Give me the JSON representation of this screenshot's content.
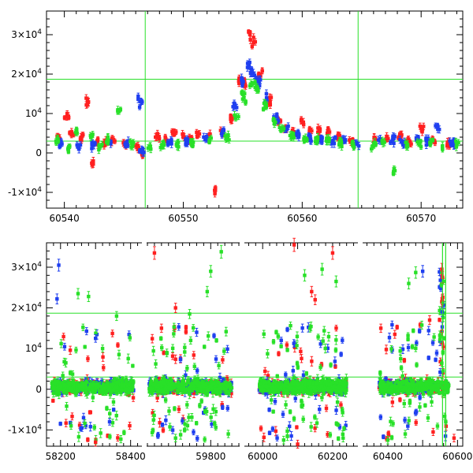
{
  "colors": {
    "background": "#ffffff",
    "axes": "#000000",
    "red": "#ff2020",
    "blue": "#1f3ff0",
    "green": "#28e028",
    "threshold_lines": "#28e028"
  },
  "chart_data": [
    {
      "id": "top_panel",
      "type": "scatter",
      "title": "",
      "xlabel": "",
      "ylabel": "",
      "xlim": [
        60538.5,
        60573.5
      ],
      "ylim": [
        -14000,
        36000
      ],
      "grid": false,
      "legend": "none",
      "x_ticks": [
        {
          "value": 60540,
          "label": "60540"
        },
        {
          "value": 60550,
          "label": "60550"
        },
        {
          "value": 60560,
          "label": "60560"
        },
        {
          "value": 60570,
          "label": "60570"
        }
      ],
      "y_ticks": [
        {
          "value": -10000,
          "base": "-1×10",
          "exp": "4"
        },
        {
          "value": 0,
          "base": "0",
          "exp": ""
        },
        {
          "value": 10000,
          "base": "10",
          "exp": "4"
        },
        {
          "value": 20000,
          "base": "2×10",
          "exp": "4"
        },
        {
          "value": 30000,
          "base": "3×10",
          "exp": "4"
        }
      ],
      "hlines": [
        18700,
        3000
      ],
      "vlines": [
        60546.8,
        60564.7
      ],
      "series": [
        {
          "color": "red",
          "points": [
            [
              60539.5,
              3500
            ],
            [
              60540.2,
              9200
            ],
            [
              60540.6,
              4500
            ],
            [
              60541.4,
              4000
            ],
            [
              60542.0,
              12800
            ],
            [
              60542.3,
              -2600
            ],
            [
              60542.8,
              2900
            ],
            [
              60543.5,
              2500
            ],
            [
              60544.1,
              3400
            ],
            [
              60545.0,
              2700
            ],
            [
              60546.2,
              1000
            ],
            [
              60546.6,
              -400
            ],
            [
              60547.8,
              4200
            ],
            [
              60548.5,
              3600
            ],
            [
              60549.2,
              5000
            ],
            [
              60550.0,
              4500
            ],
            [
              60550.6,
              3500
            ],
            [
              60551.3,
              4800
            ],
            [
              60552.1,
              4200
            ],
            [
              60552.7,
              -9500
            ],
            [
              60553.3,
              5000
            ],
            [
              60554.1,
              8500
            ],
            [
              60554.7,
              19000
            ],
            [
              60555.2,
              17500
            ],
            [
              60555.6,
              30000
            ],
            [
              60555.9,
              28000
            ],
            [
              60556.5,
              19500
            ],
            [
              60557.3,
              13000
            ],
            [
              60558.0,
              8500
            ],
            [
              60558.6,
              6200
            ],
            [
              60559.3,
              5400
            ],
            [
              60560.1,
              7800
            ],
            [
              60560.8,
              5600
            ],
            [
              60561.5,
              6000
            ],
            [
              60562.3,
              5300
            ],
            [
              60563.1,
              4500
            ],
            [
              60564.1,
              2700
            ],
            [
              60566.2,
              3200
            ],
            [
              60567.1,
              3600
            ],
            [
              60568.2,
              4300
            ],
            [
              60569.0,
              3000
            ],
            [
              60570.1,
              5900
            ],
            [
              60571.0,
              3400
            ],
            [
              60572.2,
              2200
            ]
          ]
        },
        {
          "color": "blue",
          "points": [
            [
              60539.8,
              2300
            ],
            [
              60541.2,
              1800
            ],
            [
              60542.5,
              2000
            ],
            [
              60543.9,
              2300
            ],
            [
              60545.3,
              2200
            ],
            [
              60546.4,
              13000
            ],
            [
              60546.5,
              900
            ],
            [
              60548.9,
              2600
            ],
            [
              60550.3,
              2800
            ],
            [
              60551.9,
              3300
            ],
            [
              60553.4,
              5300
            ],
            [
              60554.3,
              12000
            ],
            [
              60554.9,
              18500
            ],
            [
              60555.4,
              21700
            ],
            [
              60555.8,
              20200
            ],
            [
              60556.3,
              18200
            ],
            [
              60557.0,
              14000
            ],
            [
              60557.8,
              9000
            ],
            [
              60558.7,
              6000
            ],
            [
              60559.6,
              4500
            ],
            [
              60560.6,
              3800
            ],
            [
              60561.6,
              3600
            ],
            [
              60562.6,
              3200
            ],
            [
              60563.6,
              3000
            ],
            [
              60564.6,
              2400
            ],
            [
              60566.6,
              3000
            ],
            [
              60567.6,
              3300
            ],
            [
              60568.4,
              2800
            ],
            [
              60569.6,
              3500
            ],
            [
              60570.6,
              2900
            ],
            [
              60571.4,
              6000
            ],
            [
              60572.6,
              2500
            ]
          ]
        },
        {
          "color": "green",
          "points": [
            [
              60539.3,
              3000
            ],
            [
              60540.3,
              1000
            ],
            [
              60541.0,
              5700
            ],
            [
              60542.2,
              4400
            ],
            [
              60543.0,
              1500
            ],
            [
              60543.7,
              3200
            ],
            [
              60544.6,
              10500
            ],
            [
              60545.7,
              2000
            ],
            [
              60547.2,
              1800
            ],
            [
              60548.2,
              2100
            ],
            [
              60549.5,
              2200
            ],
            [
              60550.8,
              2700
            ],
            [
              60552.2,
              3000
            ],
            [
              60553.7,
              4000
            ],
            [
              60554.5,
              9200
            ],
            [
              60555.1,
              14000
            ],
            [
              60555.7,
              17500
            ],
            [
              60556.2,
              16800
            ],
            [
              60556.9,
              12000
            ],
            [
              60557.6,
              8200
            ],
            [
              60558.3,
              6300
            ],
            [
              60559.1,
              4700
            ],
            [
              60560.3,
              3800
            ],
            [
              60561.3,
              3400
            ],
            [
              60562.1,
              2900
            ],
            [
              60563.3,
              2500
            ],
            [
              60564.3,
              2300
            ],
            [
              60566.0,
              1800
            ],
            [
              60566.8,
              2500
            ],
            [
              60567.8,
              -4500
            ],
            [
              60568.8,
              2200
            ],
            [
              60569.8,
              2400
            ],
            [
              60570.8,
              2500
            ],
            [
              60571.8,
              1800
            ],
            [
              60573.0,
              2200
            ]
          ]
        }
      ]
    },
    {
      "id": "bottom_panel",
      "type": "scatter",
      "title": "",
      "xlabel": "",
      "ylabel": "",
      "broken_x_axis": true,
      "segments": [
        {
          "xlim": [
            58160,
            58430
          ],
          "ticks": [
            {
              "value": 58200,
              "label": "58200"
            },
            {
              "value": 58400,
              "label": "58400"
            }
          ]
        },
        {
          "xlim": [
            59620,
            59880
          ],
          "ticks": [
            {
              "value": 59800,
              "label": "59800"
            }
          ]
        },
        {
          "xlim": [
            59950,
            60270
          ],
          "ticks": [
            {
              "value": 60000,
              "label": "60000"
            },
            {
              "value": 60200,
              "label": "60200"
            }
          ]
        },
        {
          "xlim": [
            60330,
            60615
          ],
          "ticks": [
            {
              "value": 60400,
              "label": "60400"
            },
            {
              "value": 60600,
              "label": "60600"
            }
          ]
        }
      ],
      "ylim": [
        -14000,
        36000
      ],
      "grid": false,
      "legend": "none",
      "y_ticks": [
        {
          "value": -10000,
          "base": "-1×10",
          "exp": "4"
        },
        {
          "value": 0,
          "base": "0",
          "exp": ""
        },
        {
          "value": 10000,
          "base": "10",
          "exp": "4"
        },
        {
          "value": 20000,
          "base": "2×10",
          "exp": "4"
        },
        {
          "value": 30000,
          "base": "3×10",
          "exp": "4"
        }
      ],
      "hlines": [
        18700,
        3000
      ],
      "vlines": [
        60557,
        60566
      ],
      "outliers": [
        [
          58190,
          22200,
          "blue"
        ],
        [
          58195,
          30500,
          "blue"
        ],
        [
          58250,
          23500,
          "green"
        ],
        [
          58280,
          22800,
          "green"
        ],
        [
          58300,
          12500,
          "blue"
        ],
        [
          58320,
          10000,
          "green"
        ],
        [
          58360,
          18000,
          "green"
        ],
        [
          58340,
          -8000,
          "blue"
        ],
        [
          58230,
          -9000,
          "green"
        ],
        [
          58300,
          -13000,
          "red"
        ],
        [
          59640,
          33500,
          "red"
        ],
        [
          59660,
          15000,
          "red"
        ],
        [
          59700,
          20000,
          "red"
        ],
        [
          59740,
          18500,
          "green"
        ],
        [
          59790,
          24000,
          "green"
        ],
        [
          59830,
          33800,
          "green"
        ],
        [
          59700,
          -12000,
          "green"
        ],
        [
          59850,
          -11000,
          "green"
        ],
        [
          59760,
          14000,
          "blue"
        ],
        [
          59800,
          29000,
          "green"
        ],
        [
          60090,
          35500,
          "red"
        ],
        [
          60120,
          28000,
          "green"
        ],
        [
          60140,
          24000,
          "red"
        ],
        [
          60170,
          29500,
          "green"
        ],
        [
          60200,
          33500,
          "red"
        ],
        [
          60210,
          26500,
          "green"
        ],
        [
          60150,
          22000,
          "red"
        ],
        [
          60060,
          -12500,
          "green"
        ],
        [
          60100,
          -13500,
          "red"
        ],
        [
          60230,
          -12000,
          "green"
        ],
        [
          60380,
          15000,
          "red"
        ],
        [
          60420,
          13500,
          "red"
        ],
        [
          60460,
          26000,
          "green"
        ],
        [
          60480,
          28700,
          "green"
        ],
        [
          60500,
          29000,
          "blue"
        ],
        [
          60520,
          17000,
          "red"
        ],
        [
          60400,
          -12500,
          "green"
        ],
        [
          60450,
          -11000,
          "green"
        ],
        [
          60530,
          -10500,
          "red"
        ],
        [
          60590,
          -12000,
          "red"
        ],
        [
          60555,
          29500,
          "red"
        ],
        [
          60557,
          27500,
          "red"
        ],
        [
          60556,
          22000,
          "red"
        ],
        [
          60556,
          19000,
          "blue"
        ]
      ]
    }
  ]
}
